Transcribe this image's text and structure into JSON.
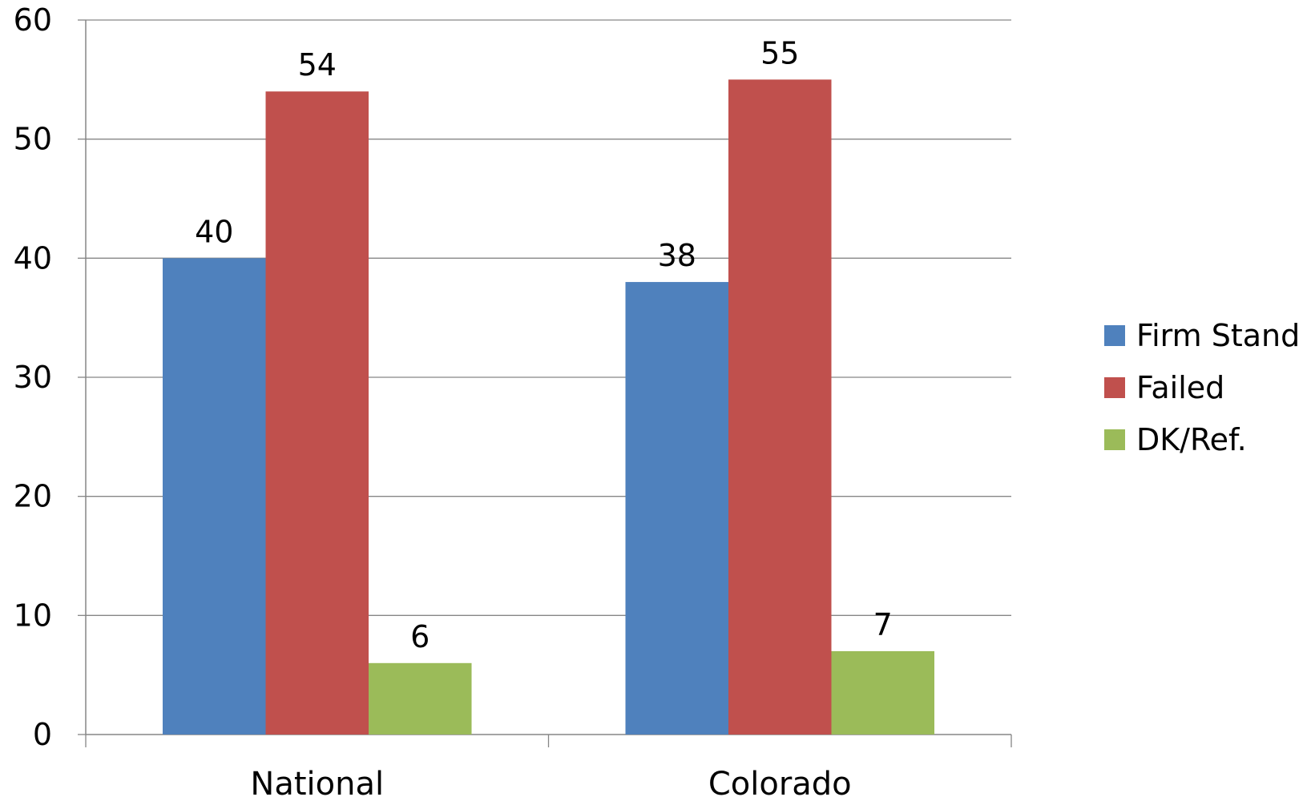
{
  "chart_data": {
    "type": "bar",
    "categories": [
      "National",
      "Colorado"
    ],
    "series": [
      {
        "name": "Firm Stand",
        "values": [
          40,
          38
        ],
        "color": "#4F81BD"
      },
      {
        "name": "Failed",
        "values": [
          54,
          55
        ],
        "color": "#C0504D"
      },
      {
        "name": "DK/Ref.",
        "values": [
          6,
          7
        ],
        "color": "#9BBB59"
      }
    ],
    "ylim": [
      0,
      60
    ],
    "yticks": [
      0,
      10,
      20,
      30,
      40,
      50,
      60
    ],
    "grid": true,
    "legend_position": "right",
    "data_labels": true
  }
}
